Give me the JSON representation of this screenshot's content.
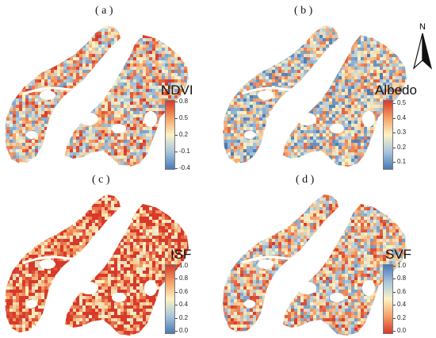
{
  "panels": [
    {
      "label": "( a )",
      "title": "NDVI",
      "ticks": [
        "0.8",
        "0.5",
        "0.2",
        "-0.1",
        "-0.4"
      ],
      "colors": [
        "#d7392a",
        "#f4a066",
        "#fbf2c4",
        "#a7c5dd",
        "#4a79b4"
      ]
    },
    {
      "label": "( b )",
      "title": "Albedo",
      "ticks": [
        "0.5",
        "0.4",
        "0.3",
        "0.2",
        "0.1"
      ],
      "colors": [
        "#d7392a",
        "#f4a066",
        "#fbf2c4",
        "#a7c5dd",
        "#4a79b4"
      ]
    },
    {
      "label": "( c )",
      "title": "ISF",
      "ticks": [
        "1.0",
        "0.8",
        "0.6",
        "0.4",
        "0.2",
        "0.0"
      ],
      "colors": [
        "#d7392a",
        "#f4a066",
        "#fbf2c4",
        "#a7c5dd",
        "#4a79b4"
      ]
    },
    {
      "label": "( d )",
      "title": "SVF",
      "ticks": [
        "1.0",
        "0.8",
        "0.6",
        "0.4",
        "0.2",
        "0.0"
      ],
      "colors": [
        "#4a79b4",
        "#a7c5dd",
        "#fbf2c4",
        "#f4a066",
        "#d7392a"
      ]
    }
  ],
  "north": {
    "label": "N"
  }
}
